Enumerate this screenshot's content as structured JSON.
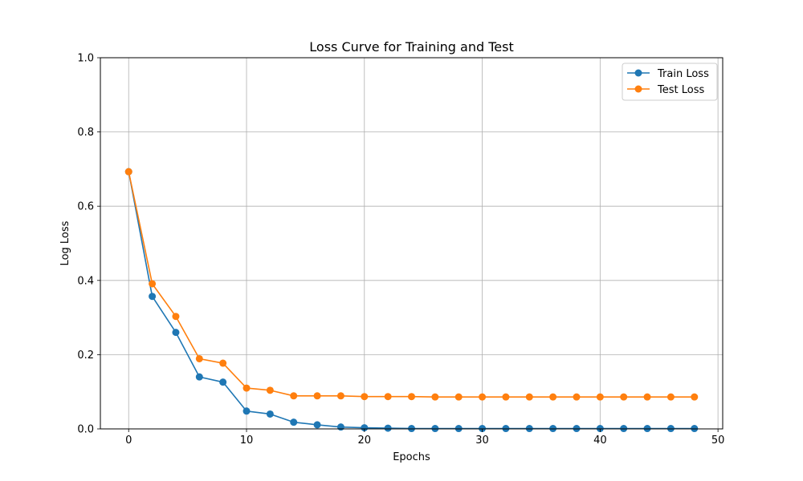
{
  "chart_data": {
    "type": "line",
    "title": "Loss Curve for Training and Test",
    "xlabel": "Epochs",
    "ylabel": "Log Loss",
    "xlim": [
      -2.4,
      50.4
    ],
    "ylim": [
      0,
      1.0
    ],
    "xticks": [
      "0",
      "10",
      "20",
      "30",
      "40",
      "50"
    ],
    "yticks": [
      "0.0",
      "0.2",
      "0.4",
      "0.6",
      "0.8",
      "1.0"
    ],
    "grid": true,
    "legend_position": "top-right",
    "x": [
      0,
      2,
      4,
      6,
      8,
      10,
      12,
      14,
      16,
      18,
      20,
      22,
      24,
      26,
      28,
      30,
      32,
      34,
      36,
      38,
      40,
      42,
      44,
      46,
      48
    ],
    "series": [
      {
        "name": "Train Loss",
        "color": "#1f77b4",
        "values": [
          0.693,
          0.357,
          0.26,
          0.14,
          0.126,
          0.048,
          0.04,
          0.018,
          0.011,
          0.005,
          0.003,
          0.002,
          0.001,
          0.001,
          0.001,
          0.001,
          0.001,
          0.001,
          0.001,
          0.001,
          0.001,
          0.001,
          0.001,
          0.001,
          0.001
        ]
      },
      {
        "name": "Test Loss",
        "color": "#ff7f0e",
        "values": [
          0.693,
          0.391,
          0.303,
          0.189,
          0.177,
          0.11,
          0.104,
          0.089,
          0.089,
          0.089,
          0.087,
          0.087,
          0.087,
          0.086,
          0.086,
          0.086,
          0.086,
          0.086,
          0.086,
          0.086,
          0.086,
          0.086,
          0.086,
          0.086,
          0.086
        ]
      }
    ]
  }
}
